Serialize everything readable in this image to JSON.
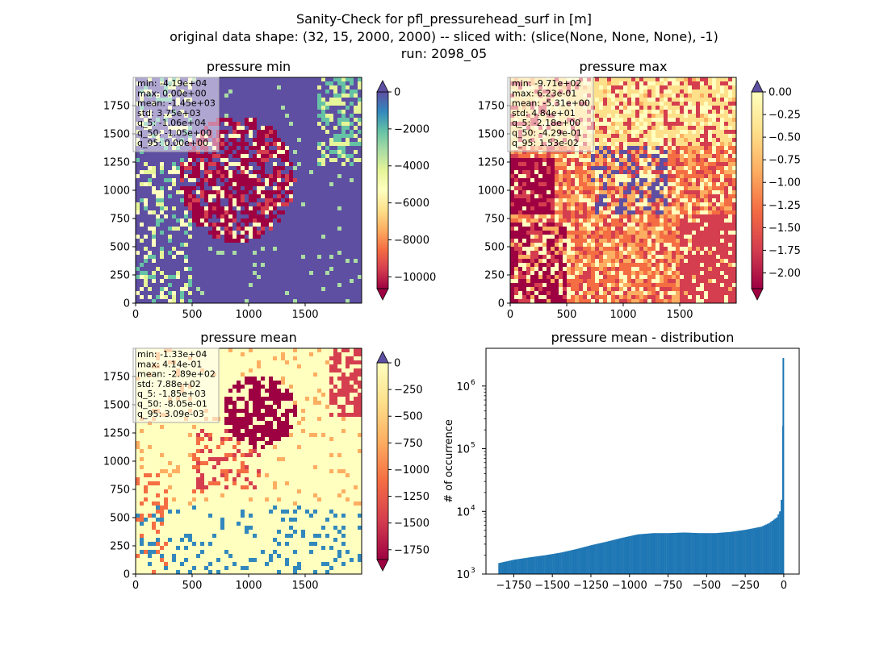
{
  "figure": {
    "title_lines": [
      "Sanity-Check for pfl_pressurehead_surf in [m]",
      "original data shape: (32, 15, 2000, 2000) -- sliced with: (slice(None, None, None), -1)",
      "run: 2098_05"
    ]
  },
  "panels": [
    {
      "title": "pressure min",
      "stats": [
        "min: -4.19e+04",
        "max: 0.00e+00",
        "mean: -1.45e+03",
        "std: 3.75e+03",
        "q_5: -1.06e+04",
        "q_50: -1.05e+00",
        "q_95: 0.00e+00"
      ],
      "xticks": [
        "0",
        "500",
        "1000",
        "1500"
      ],
      "yticks": [
        "0",
        "250",
        "500",
        "750",
        "1000",
        "1250",
        "1500",
        "1750"
      ],
      "colorbar_ticks": [
        "0",
        "−2000",
        "−4000",
        "−6000",
        "−8000",
        "−10000"
      ],
      "colorbar_extend": "both"
    },
    {
      "title": "pressure max",
      "stats": [
        "min: -9.71e+02",
        "max: 6.23e-01",
        "mean: -5.31e+00",
        "std: 4.84e+01",
        "q_5: -2.18e+00",
        "q_50: -4.29e-01",
        "q_95: 1.53e-02"
      ],
      "xticks": [
        "0",
        "500",
        "1000",
        "1500"
      ],
      "yticks": [
        "0",
        "250",
        "500",
        "750",
        "1000",
        "1250",
        "1500",
        "1750"
      ],
      "colorbar_ticks": [
        "0.00",
        "−0.25",
        "−0.50",
        "−0.75",
        "−1.00",
        "−1.25",
        "−1.50",
        "−1.75",
        "−2.00"
      ],
      "colorbar_extend": "both"
    },
    {
      "title": "pressure mean",
      "stats": [
        "min: -1.33e+04",
        "max: 4.14e-01",
        "mean: -2.89e+02",
        "std: 7.88e+02",
        "q_5: -1.85e+03",
        "q_50: -8.05e-01",
        "q_95: 3.09e-03"
      ],
      "xticks": [
        "0",
        "500",
        "1000",
        "1500"
      ],
      "yticks": [
        "0",
        "250",
        "500",
        "750",
        "1000",
        "1250",
        "1500",
        "1750"
      ],
      "colorbar_ticks": [
        "0",
        "−250",
        "−500",
        "−750",
        "−1000",
        "−1250",
        "−1500",
        "−1750"
      ],
      "colorbar_extend": "both"
    }
  ],
  "colors": {
    "cmap_spectral": [
      "#9e0142",
      "#d53e4f",
      "#f46d43",
      "#fdae61",
      "#fee08b",
      "#ffffbf",
      "#e6f598",
      "#abdda4",
      "#66c2a5",
      "#3288bd",
      "#5e4fa2"
    ],
    "hist_bar": "#1f77b4"
  },
  "chart_data": [
    {
      "type": "heatmap",
      "title": "pressure min",
      "xlim": [
        0,
        2000
      ],
      "ylim": [
        0,
        2000
      ],
      "value_range": [
        -10600,
        0
      ]
    },
    {
      "type": "heatmap",
      "title": "pressure max",
      "xlim": [
        0,
        2000
      ],
      "ylim": [
        0,
        2000
      ],
      "value_range": [
        -2.18,
        0.0153
      ]
    },
    {
      "type": "heatmap",
      "title": "pressure mean",
      "xlim": [
        0,
        2000
      ],
      "ylim": [
        0,
        2000
      ],
      "value_range": [
        -1850,
        0.0031
      ]
    },
    {
      "type": "bar",
      "title": "pressure mean - distribution",
      "ylabel": "# of occurrence",
      "y_scale": "log",
      "xlim": [
        -1930,
        100
      ],
      "ylim": [
        1000,
        4000000
      ],
      "xticks": [
        "−1750",
        "−1500",
        "−1250",
        "−1000",
        "−750",
        "−500",
        "−250",
        "0"
      ],
      "ytick_exponents": [
        "10",
        "10",
        "10",
        "10"
      ],
      "ytick_powers": [
        "3",
        "4",
        "5",
        "6"
      ],
      "x": [
        -1850,
        -1750,
        -1650,
        -1550,
        -1450,
        -1350,
        -1250,
        -1150,
        -1050,
        -950,
        -850,
        -750,
        -650,
        -550,
        -450,
        -350,
        -250,
        -150,
        -100,
        -50,
        -30,
        -15,
        -5
      ],
      "values": [
        1500,
        1700,
        1850,
        2000,
        2200,
        2500,
        2900,
        3300,
        3800,
        4300,
        4500,
        4500,
        4600,
        4500,
        4500,
        4700,
        5100,
        5700,
        6500,
        8000,
        10000,
        19000,
        2800000
      ]
    }
  ]
}
